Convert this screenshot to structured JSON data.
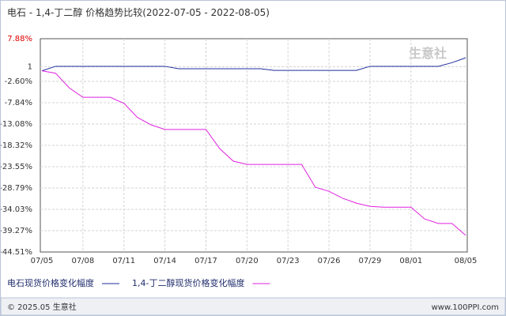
{
  "chart_data": {
    "type": "line",
    "title": "电石 - 1,4-丁二醇 价格趋势比较(2022-07-05 - 2022-08-05)",
    "watermark": "生意社",
    "categories": [
      "07/05",
      null,
      null,
      "07/08",
      null,
      null,
      "07/11",
      null,
      null,
      "07/14",
      null,
      null,
      "07/17",
      null,
      null,
      "07/20",
      null,
      null,
      "07/23",
      null,
      null,
      "07/26",
      null,
      null,
      "07/29",
      null,
      null,
      "08/01",
      null,
      null,
      null,
      "08/05"
    ],
    "series": [
      {
        "name": "电石现货价格变化幅度",
        "color": "#1f2d9c",
        "values": [
          0,
          1.1,
          1.1,
          1.1,
          1.1,
          1.1,
          1.1,
          1.1,
          1.1,
          1.1,
          0.5,
          0.5,
          0.5,
          0.5,
          0.5,
          0.5,
          0.5,
          0.1,
          0.1,
          0.1,
          0.1,
          0.1,
          0.1,
          0.1,
          1.1,
          1.1,
          1.1,
          1.1,
          1.1,
          1.1,
          2.0,
          3.2
        ]
      },
      {
        "name": "1,4-丁二醇现货价格变化幅度",
        "color": "#e020e0",
        "values": [
          0,
          -0.6,
          -4.2,
          -6.5,
          -6.5,
          -6.5,
          -8.0,
          -11.5,
          -13.3,
          -14.4,
          -14.4,
          -14.4,
          -14.4,
          -19.1,
          -22.2,
          -23.0,
          -23.0,
          -23.0,
          -23.0,
          -23.0,
          -28.6,
          -29.6,
          -31.3,
          -32.5,
          -33.3,
          -33.5,
          -33.5,
          -33.5,
          -36.4,
          -37.5,
          -37.5,
          -40.4
        ]
      }
    ],
    "ylim": [
      -44.51,
      7.88
    ],
    "yticks": [
      {
        "value": -44.51,
        "label": "-44.51%"
      },
      {
        "value": -39.27,
        "label": "-39.27%"
      },
      {
        "value": -34.03,
        "label": "-34.03%"
      },
      {
        "value": -28.79,
        "label": "-28.79%"
      },
      {
        "value": -23.55,
        "label": "-23.55%"
      },
      {
        "value": -18.32,
        "label": "-18.32%"
      },
      {
        "value": -13.08,
        "label": "-13.08%"
      },
      {
        "value": -7.84,
        "label": "-7.84%"
      },
      {
        "value": -2.6,
        "label": "-2.60%"
      },
      1,
      {
        "value": 7.88,
        "label": "7.88%"
      }
    ],
    "grid": true,
    "footer": {
      "copyright": "© 2025.05 生意社",
      "site": "www.100PPI.com"
    }
  }
}
